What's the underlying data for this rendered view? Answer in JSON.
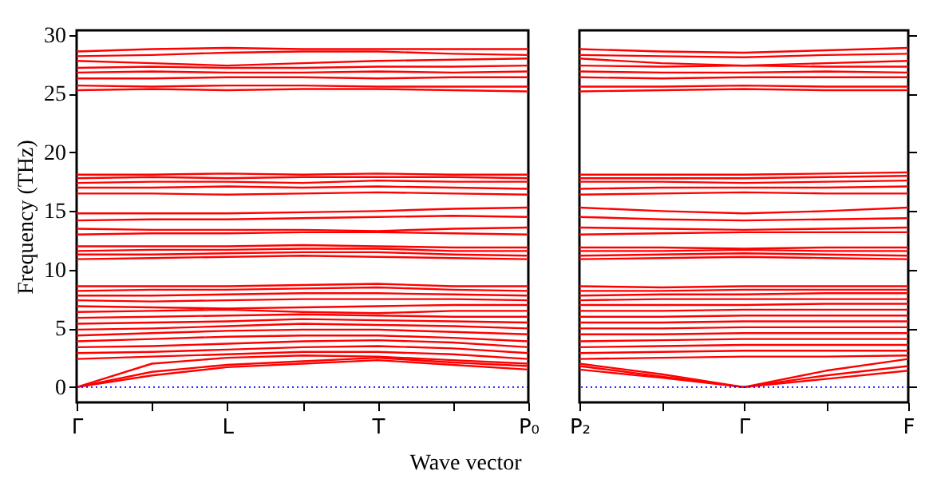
{
  "chart_data": [
    {
      "type": "line",
      "ylabel": "Frequency (THz)",
      "xlabel": "Wave vector",
      "categories": [
        "Γ",
        null,
        "L",
        null,
        "T",
        null,
        "P₀"
      ],
      "ylim": [
        -1.3,
        30.4
      ],
      "yticks": [
        0,
        5,
        10,
        15,
        20,
        25,
        30
      ],
      "grid": false,
      "legend": false,
      "ref_lines": [
        {
          "axis": "y",
          "value": 0,
          "color": "#0000ff",
          "line_style": "dotted"
        }
      ],
      "series": [
        {
          "color": "#ff0000",
          "values": [
            0,
            1.0,
            1.7,
            2.0,
            2.3,
            1.9,
            1.5
          ]
        },
        {
          "color": "#ff0000",
          "values": [
            0,
            1.3,
            1.9,
            2.2,
            2.5,
            2.1,
            1.8
          ]
        },
        {
          "color": "#ff0000",
          "values": [
            0,
            2.0,
            2.5,
            2.7,
            2.6,
            2.3,
            2.0
          ]
        },
        {
          "color": "#ff0000",
          "values": [
            2.4,
            2.6,
            2.8,
            3.0,
            3.0,
            2.8,
            2.4
          ]
        },
        {
          "color": "#ff0000",
          "values": [
            2.9,
            3.0,
            3.2,
            3.4,
            3.5,
            3.3,
            2.9
          ]
        },
        {
          "color": "#ff0000",
          "values": [
            3.4,
            3.5,
            3.7,
            3.9,
            4.0,
            3.8,
            3.4
          ]
        },
        {
          "color": "#ff0000",
          "values": [
            3.9,
            4.1,
            4.3,
            4.4,
            4.4,
            4.2,
            3.9
          ]
        },
        {
          "color": "#ff0000",
          "values": [
            4.4,
            4.6,
            4.8,
            4.9,
            4.9,
            4.7,
            4.5
          ]
        },
        {
          "color": "#ff0000",
          "values": [
            4.9,
            5.0,
            5.2,
            5.4,
            5.3,
            5.2,
            5.0
          ]
        },
        {
          "color": "#ff0000",
          "values": [
            5.4,
            5.5,
            5.6,
            5.8,
            5.7,
            5.6,
            5.5
          ]
        },
        {
          "color": "#ff0000",
          "values": [
            5.9,
            6.0,
            6.1,
            6.2,
            6.1,
            6.0,
            6.0
          ]
        },
        {
          "color": "#ff0000",
          "values": [
            6.4,
            6.5,
            6.6,
            6.4,
            6.3,
            6.5,
            6.5
          ]
        },
        {
          "color": "#ff0000",
          "values": [
            6.9,
            6.8,
            6.7,
            6.8,
            6.9,
            7.0,
            7.0
          ]
        },
        {
          "color": "#ff0000",
          "values": [
            7.4,
            7.3,
            7.4,
            7.5,
            7.5,
            7.5,
            7.4
          ]
        },
        {
          "color": "#ff0000",
          "values": [
            7.8,
            7.8,
            7.9,
            8.0,
            8.0,
            7.9,
            7.8
          ]
        },
        {
          "color": "#ff0000",
          "values": [
            8.2,
            8.3,
            8.3,
            8.4,
            8.5,
            8.3,
            8.2
          ]
        },
        {
          "color": "#ff0000",
          "values": [
            8.6,
            8.6,
            8.6,
            8.7,
            8.8,
            8.6,
            8.6
          ]
        },
        {
          "color": "#ff0000",
          "values": [
            10.9,
            11.0,
            11.1,
            11.2,
            11.1,
            11.0,
            10.9
          ]
        },
        {
          "color": "#ff0000",
          "values": [
            11.3,
            11.3,
            11.4,
            11.5,
            11.5,
            11.3,
            11.2
          ]
        },
        {
          "color": "#ff0000",
          "values": [
            11.6,
            11.7,
            11.7,
            11.8,
            11.8,
            11.6,
            11.6
          ]
        },
        {
          "color": "#ff0000",
          "values": [
            12.0,
            12.0,
            12.0,
            12.1,
            12.0,
            11.9,
            11.9
          ]
        },
        {
          "color": "#ff0000",
          "values": [
            13.0,
            13.1,
            13.1,
            13.2,
            13.2,
            13.1,
            13.0
          ]
        },
        {
          "color": "#ff0000",
          "values": [
            13.5,
            13.4,
            13.4,
            13.4,
            13.3,
            13.5,
            13.6
          ]
        },
        {
          "color": "#ff0000",
          "values": [
            14.2,
            14.3,
            14.3,
            14.4,
            14.5,
            14.6,
            14.5
          ]
        },
        {
          "color": "#ff0000",
          "values": [
            14.8,
            14.8,
            14.8,
            14.9,
            15.0,
            15.2,
            15.3
          ]
        },
        {
          "color": "#ff0000",
          "values": [
            16.5,
            16.5,
            16.4,
            16.5,
            16.6,
            16.5,
            16.4
          ]
        },
        {
          "color": "#ff0000",
          "values": [
            17.0,
            17.0,
            17.1,
            17.0,
            17.1,
            17.0,
            16.9
          ]
        },
        {
          "color": "#ff0000",
          "values": [
            17.4,
            17.5,
            17.5,
            17.4,
            17.6,
            17.5,
            17.5
          ]
        },
        {
          "color": "#ff0000",
          "values": [
            17.8,
            17.9,
            17.8,
            17.9,
            17.9,
            17.9,
            17.8
          ]
        },
        {
          "color": "#ff0000",
          "values": [
            18.1,
            18.1,
            18.2,
            18.1,
            18.2,
            18.1,
            18.1
          ]
        },
        {
          "color": "#ff0000",
          "values": [
            25.3,
            25.4,
            25.3,
            25.4,
            25.4,
            25.3,
            25.2
          ]
        },
        {
          "color": "#ff0000",
          "values": [
            25.7,
            25.6,
            25.7,
            25.7,
            25.6,
            25.6,
            25.6
          ]
        },
        {
          "color": "#ff0000",
          "values": [
            26.3,
            26.3,
            26.4,
            26.4,
            26.3,
            26.4,
            26.4
          ]
        },
        {
          "color": "#ff0000",
          "values": [
            26.8,
            26.9,
            26.8,
            26.8,
            26.9,
            26.8,
            26.9
          ]
        },
        {
          "color": "#ff0000",
          "values": [
            27.2,
            27.3,
            27.2,
            27.2,
            27.3,
            27.3,
            27.4
          ]
        },
        {
          "color": "#ff0000",
          "values": [
            27.8,
            27.6,
            27.4,
            27.6,
            27.8,
            27.9,
            28.0
          ]
        },
        {
          "color": "#ff0000",
          "values": [
            28.2,
            28.3,
            28.5,
            28.6,
            28.6,
            28.4,
            28.3
          ]
        },
        {
          "color": "#ff0000",
          "values": [
            28.6,
            28.8,
            28.9,
            28.8,
            28.8,
            28.8,
            28.8
          ]
        }
      ]
    },
    {
      "type": "line",
      "categories": [
        "P₂",
        null,
        "Γ",
        null,
        "F"
      ],
      "ylim": [
        -1.3,
        30.4
      ],
      "yticks": [
        0,
        5,
        10,
        15,
        20,
        25,
        30
      ],
      "tick_labels": "x",
      "grid": false,
      "legend": false,
      "ref_lines": [
        {
          "axis": "y",
          "value": 0,
          "color": "#0000ff",
          "line_style": "dotted"
        }
      ],
      "series": [
        {
          "color": "#ff0000",
          "values": [
            1.5,
            0.8,
            0,
            0.7,
            1.4
          ]
        },
        {
          "color": "#ff0000",
          "values": [
            1.8,
            0.9,
            0,
            1.0,
            1.8
          ]
        },
        {
          "color": "#ff0000",
          "values": [
            2.0,
            1.1,
            0,
            1.4,
            2.4
          ]
        },
        {
          "color": "#ff0000",
          "values": [
            2.4,
            2.5,
            2.6,
            2.6,
            2.7
          ]
        },
        {
          "color": "#ff0000",
          "values": [
            2.9,
            3.0,
            3.1,
            3.1,
            3.1
          ]
        },
        {
          "color": "#ff0000",
          "values": [
            3.4,
            3.5,
            3.6,
            3.6,
            3.6
          ]
        },
        {
          "color": "#ff0000",
          "values": [
            3.9,
            4.0,
            4.1,
            4.1,
            4.1
          ]
        },
        {
          "color": "#ff0000",
          "values": [
            4.5,
            4.5,
            4.6,
            4.6,
            4.6
          ]
        },
        {
          "color": "#ff0000",
          "values": [
            5.0,
            5.0,
            5.1,
            5.1,
            5.1
          ]
        },
        {
          "color": "#ff0000",
          "values": [
            5.5,
            5.5,
            5.6,
            5.6,
            5.6
          ]
        },
        {
          "color": "#ff0000",
          "values": [
            6.0,
            6.0,
            6.1,
            6.1,
            6.1
          ]
        },
        {
          "color": "#ff0000",
          "values": [
            6.5,
            6.5,
            6.6,
            6.6,
            6.6
          ]
        },
        {
          "color": "#ff0000",
          "values": [
            7.0,
            7.0,
            7.0,
            7.1,
            7.1
          ]
        },
        {
          "color": "#ff0000",
          "values": [
            7.4,
            7.5,
            7.5,
            7.5,
            7.5
          ]
        },
        {
          "color": "#ff0000",
          "values": [
            7.8,
            7.9,
            7.9,
            8.0,
            8.0
          ]
        },
        {
          "color": "#ff0000",
          "values": [
            8.2,
            8.2,
            8.3,
            8.3,
            8.3
          ]
        },
        {
          "color": "#ff0000",
          "values": [
            8.6,
            8.5,
            8.6,
            8.6,
            8.6
          ]
        },
        {
          "color": "#ff0000",
          "values": [
            10.9,
            11.0,
            11.1,
            11.0,
            10.9
          ]
        },
        {
          "color": "#ff0000",
          "values": [
            11.2,
            11.3,
            11.4,
            11.3,
            11.2
          ]
        },
        {
          "color": "#ff0000",
          "values": [
            11.6,
            11.6,
            11.7,
            11.6,
            11.6
          ]
        },
        {
          "color": "#ff0000",
          "values": [
            11.9,
            11.9,
            11.8,
            11.9,
            11.9
          ]
        },
        {
          "color": "#ff0000",
          "values": [
            13.0,
            13.1,
            13.2,
            13.2,
            13.2
          ]
        },
        {
          "color": "#ff0000",
          "values": [
            13.6,
            13.5,
            13.4,
            13.5,
            13.6
          ]
        },
        {
          "color": "#ff0000",
          "values": [
            14.5,
            14.3,
            14.2,
            14.3,
            14.4
          ]
        },
        {
          "color": "#ff0000",
          "values": [
            15.3,
            15.0,
            14.8,
            15.0,
            15.3
          ]
        },
        {
          "color": "#ff0000",
          "values": [
            16.4,
            16.5,
            16.6,
            16.5,
            16.5
          ]
        },
        {
          "color": "#ff0000",
          "values": [
            16.9,
            17.0,
            17.0,
            17.0,
            17.1
          ]
        },
        {
          "color": "#ff0000",
          "values": [
            17.5,
            17.5,
            17.4,
            17.5,
            17.6
          ]
        },
        {
          "color": "#ff0000",
          "values": [
            17.8,
            17.8,
            17.8,
            17.9,
            18.0
          ]
        },
        {
          "color": "#ff0000",
          "values": [
            18.1,
            18.1,
            18.1,
            18.2,
            18.3
          ]
        },
        {
          "color": "#ff0000",
          "values": [
            25.2,
            25.3,
            25.4,
            25.3,
            25.3
          ]
        },
        {
          "color": "#ff0000",
          "values": [
            25.6,
            25.6,
            25.7,
            25.6,
            25.6
          ]
        },
        {
          "color": "#ff0000",
          "values": [
            26.4,
            26.3,
            26.4,
            26.4,
            26.4
          ]
        },
        {
          "color": "#ff0000",
          "values": [
            26.9,
            26.8,
            26.8,
            26.9,
            26.8
          ]
        },
        {
          "color": "#ff0000",
          "values": [
            27.4,
            27.3,
            27.4,
            27.3,
            27.3
          ]
        },
        {
          "color": "#ff0000",
          "values": [
            28.0,
            27.6,
            27.4,
            27.6,
            27.8
          ]
        },
        {
          "color": "#ff0000",
          "values": [
            28.3,
            28.2,
            28.1,
            28.3,
            28.4
          ]
        },
        {
          "color": "#ff0000",
          "values": [
            28.8,
            28.6,
            28.5,
            28.7,
            28.9
          ]
        }
      ]
    }
  ]
}
